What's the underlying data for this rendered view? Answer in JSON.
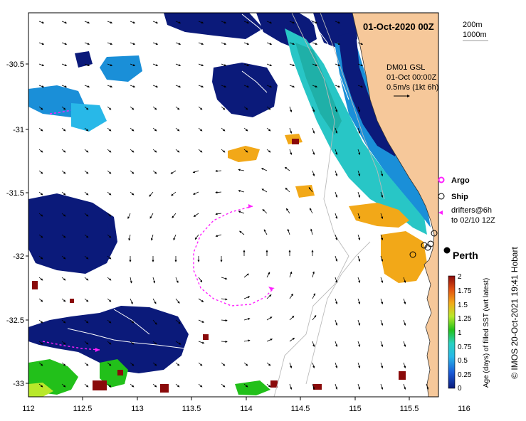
{
  "map": {
    "title": "01-Oct-2020 00Z",
    "bathy_labels": [
      "200m",
      "1000m"
    ],
    "info_lines": [
      "DM01 GSL",
      "01-Oct 00:00Z",
      "0.5m/s (1kt 6h)"
    ],
    "lat_ticks": [
      "-30.5",
      "-31",
      "-31.5",
      "-32",
      "-32.5",
      "-33"
    ],
    "lon_ticks": [
      "112",
      "112.5",
      "113",
      "113.5",
      "114",
      "114.5",
      "115",
      "115.5",
      "116"
    ],
    "legend": {
      "argo": "Argo",
      "ship": "Ship",
      "drifters_line1": "drifters@6h",
      "drifters_line2": "to 02/10 12Z"
    },
    "city": "Perth",
    "colorbar": {
      "title": "Age (days) of filled SST (wrt latest)",
      "ticks": [
        "2",
        "1.75",
        "1.5",
        "1.25",
        "1",
        "0.75",
        "0.5",
        "0.25",
        "0"
      ]
    },
    "credit": "© IMOS 20-Oct-2021 19:41 Hobart",
    "colors": {
      "land": "#f6c89a",
      "deep_blue": "#0b1a7a",
      "mid_blue": "#1a8fd8",
      "cyan": "#28c6c6",
      "teal": "#1fb0a8",
      "orange": "#f2a818",
      "green": "#22c01a",
      "lime": "#b8e82a",
      "dark_red": "#8a0a0a",
      "magenta": "#ff20ff"
    }
  }
}
